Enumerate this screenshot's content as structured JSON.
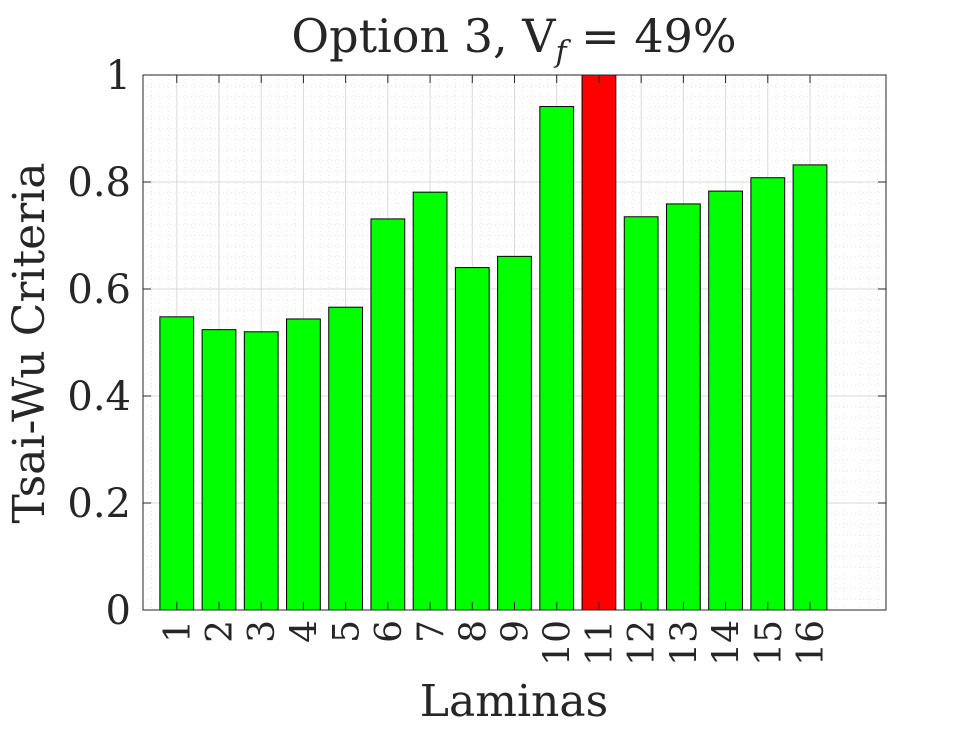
{
  "colors": {
    "bar_normal": "#00ff00",
    "bar_max": "#ff0000",
    "bar_edge": "#000000",
    "axis": "#262626",
    "grid_major": "#d9d9d9",
    "grid_minor": "#e6e6e6"
  },
  "chart_data": {
    "type": "bar",
    "title": "Option 3, V",
    "title_sub": "f",
    "title_tail": " = 49%",
    "xlabel": "Laminas",
    "ylabel": "Tsai-Wu Criteria",
    "categories": [
      "1",
      "2",
      "3",
      "4",
      "5",
      "6",
      "7",
      "8",
      "9",
      "10",
      "11",
      "12",
      "13",
      "14",
      "15",
      "16"
    ],
    "values": [
      0.548,
      0.524,
      0.52,
      0.544,
      0.566,
      0.731,
      0.781,
      0.64,
      0.661,
      0.941,
      1.0,
      0.735,
      0.759,
      0.783,
      0.808,
      0.832
    ],
    "highlight_index": 10,
    "ylim": [
      0,
      1
    ],
    "yticks": [
      0,
      0.2,
      0.4,
      0.6,
      0.8,
      1
    ],
    "ytick_labels": [
      "0",
      "0.2",
      "0.4",
      "0.6",
      "0.8",
      "1"
    ],
    "xlim": [
      0.2,
      17.8
    ],
    "grid": true,
    "minor_grid": true,
    "legend": false
  }
}
